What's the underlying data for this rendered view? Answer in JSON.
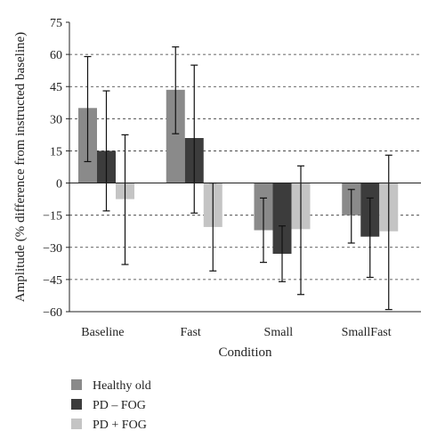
{
  "chart_data": {
    "type": "bar",
    "xlabel": "Condition",
    "ylabel": "Amplitude (% difference from instructed baseline)",
    "categories": [
      "Baseline",
      "Fast",
      "Small",
      "SmallFast"
    ],
    "ylim": [
      -60,
      75
    ],
    "yticks": [
      75,
      60,
      45,
      30,
      15,
      0,
      -15,
      -30,
      -45,
      -60
    ],
    "grid": "horizontal-dashed",
    "legend_position": "bottom-left",
    "series": [
      {
        "name": "Healthy old",
        "color": "#8a8a8a",
        "values": [
          35,
          43.5,
          -22,
          -15
        ],
        "err_low": [
          10,
          23,
          -37,
          -28
        ],
        "err_high": [
          59,
          63.5,
          -7,
          -3
        ]
      },
      {
        "name": "PD – FOG",
        "color": "#3c3c3c",
        "values": [
          15,
          21,
          -33,
          -25
        ],
        "err_low": [
          -13,
          -14,
          -46,
          -44
        ],
        "err_high": [
          43,
          55,
          -20,
          -7
        ]
      },
      {
        "name": "PD + FOG",
        "color": "#c4c4c4",
        "values": [
          -7.5,
          -20.5,
          -21.5,
          -22.5
        ],
        "err_low": [
          -38,
          -41,
          -52,
          -59
        ],
        "err_high": [
          22.5,
          0,
          8,
          13
        ]
      }
    ]
  }
}
